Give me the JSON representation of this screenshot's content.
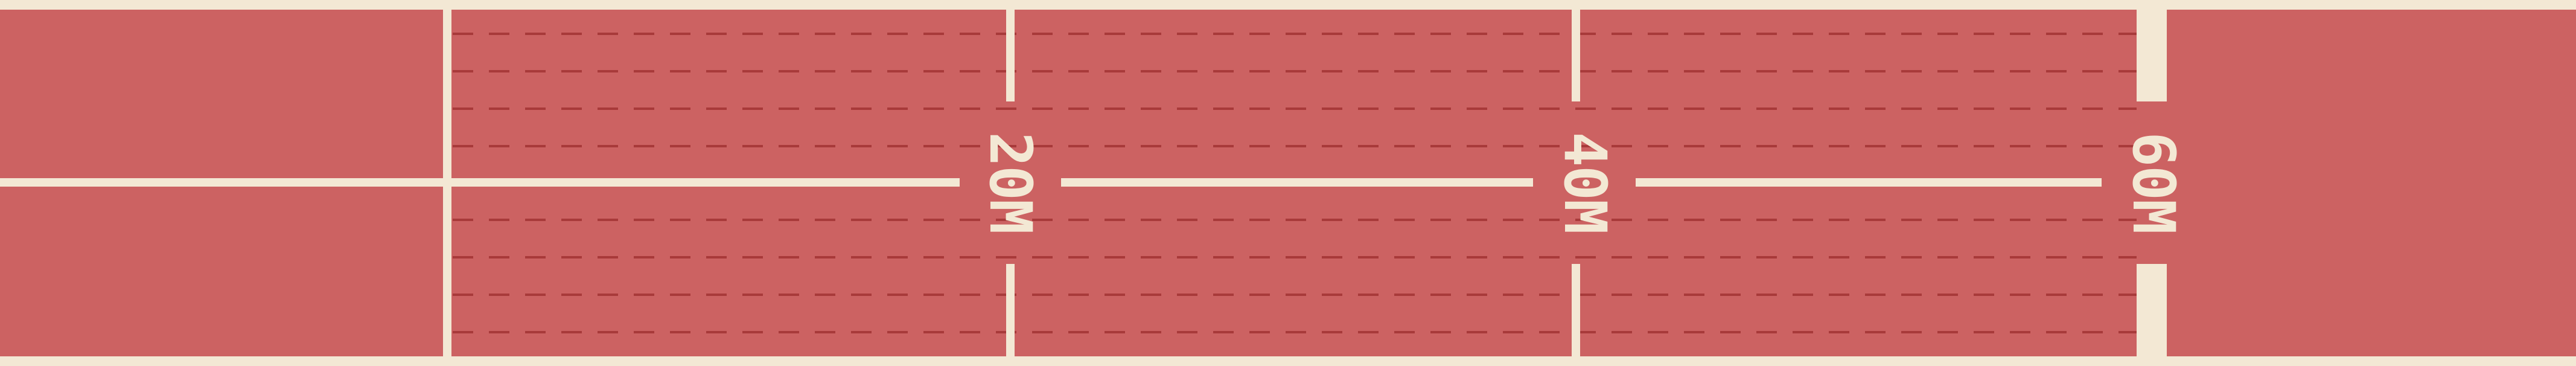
{
  "field": {
    "colors": {
      "turf": "#cc6262",
      "line": "#f3e8d4",
      "lane_dash": "#a83a3a"
    },
    "distance_markers": [
      {
        "label": "20M"
      },
      {
        "label": "40M"
      },
      {
        "label": "60M"
      }
    ]
  }
}
